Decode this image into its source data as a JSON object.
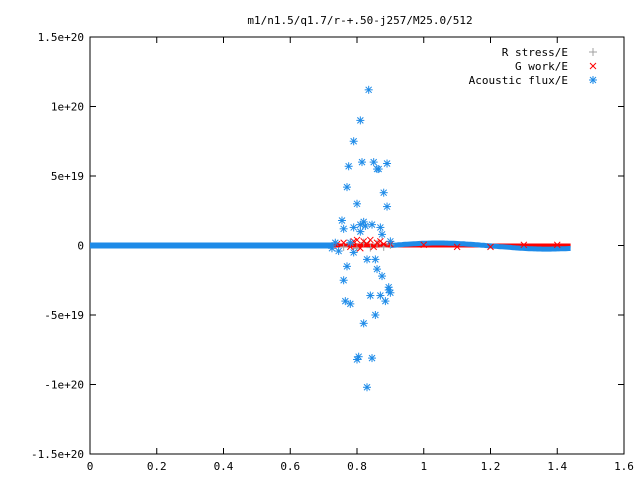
{
  "chart_data": {
    "type": "scatter",
    "title": "m1/n1.5/q1.7/r-+.50-j257/M25.0/512",
    "xlabel": "",
    "ylabel": "",
    "xlim": [
      0,
      1.6
    ],
    "ylim": [
      -1.5e+20,
      1.5e+20
    ],
    "x_ticks": [
      0,
      0.2,
      0.4,
      0.6,
      0.8,
      1,
      1.2,
      1.4,
      1.6
    ],
    "x_tick_labels": [
      "0",
      "0.2",
      "0.4",
      "0.6",
      "0.8",
      "1",
      "1.2",
      "1.4",
      "1.6"
    ],
    "y_ticks": [
      -1.5e+20,
      -1e+20,
      -5e+19,
      0,
      5e+19,
      1e+20,
      1.5e+20
    ],
    "y_tick_labels": [
      "-1.5e+20",
      "-1e+20",
      "-5e+19",
      "0",
      "5e+19",
      "1e+20",
      "1.5e+20"
    ],
    "grid": false,
    "legend_position": "top-right",
    "series": [
      {
        "name": "R stress/E",
        "marker": "plus",
        "color": "#a0a0a0",
        "x": [
          0.76,
          0.78,
          0.8,
          0.82,
          0.84,
          0.86,
          0.88,
          0.9
        ],
        "y": [
          -1e+18,
          1.5e+18,
          -2e+18,
          2e+18,
          -1.5e+18,
          1e+18,
          -1e+18,
          5e+17
        ]
      },
      {
        "name": "G work/E",
        "marker": "cross",
        "color": "#ff0000",
        "x": [
          0.74,
          0.76,
          0.78,
          0.79,
          0.8,
          0.81,
          0.82,
          0.83,
          0.84,
          0.85,
          0.86,
          0.87,
          0.88,
          0.9,
          1.0,
          1.1,
          1.2,
          1.3,
          1.4
        ],
        "y": [
          1e+18,
          2e+18,
          -1e+18,
          3e+18,
          4e+18,
          -2e+18,
          3e+18,
          1e+18,
          4e+18,
          -1e+18,
          2e+18,
          3e+18,
          1e+18,
          1e+18,
          5e+17,
          -1e+18,
          -1e+18,
          5e+17,
          5e+17
        ]
      },
      {
        "name": "Acoustic flux/E",
        "marker": "star",
        "color": "#1e8be8",
        "x": [
          0.725,
          0.735,
          0.745,
          0.755,
          0.76,
          0.765,
          0.77,
          0.775,
          0.78,
          0.79,
          0.79,
          0.8,
          0.8,
          0.805,
          0.81,
          0.81,
          0.815,
          0.82,
          0.82,
          0.825,
          0.83,
          0.835,
          0.84,
          0.845,
          0.85,
          0.855,
          0.86,
          0.86,
          0.865,
          0.87,
          0.87,
          0.875,
          0.88,
          0.885,
          0.89,
          0.89,
          0.895,
          0.9,
          0.9,
          0.76,
          0.77,
          0.78,
          0.79,
          0.81,
          0.83,
          0.845,
          0.855,
          0.875,
          0.895
        ],
        "y": [
          -2e+18,
          2e+18,
          -4e+18,
          1.8e+19,
          1.2e+19,
          -4e+19,
          4.2e+19,
          5.7e+19,
          -4.2e+19,
          1.3e+19,
          7.5e+19,
          -8.2e+19,
          3e+19,
          -8e+19,
          9e+19,
          1.5e+19,
          6e+19,
          -5.6e+19,
          1.7e+19,
          1.4e+19,
          -1.02e+20,
          1.12e+20,
          -3.6e+19,
          -8.1e+19,
          6e+19,
          -5e+19,
          5.5e+19,
          -1.7e+19,
          5.5e+19,
          -3.6e+19,
          1.3e+19,
          -2.2e+19,
          3.8e+19,
          -4e+19,
          5.9e+19,
          2.8e+19,
          -3.2e+19,
          -3.4e+19,
          3e+18,
          -2.5e+19,
          -1.5e+19,
          2e+18,
          -5e+18,
          1e+19,
          -1e+19,
          1.5e+19,
          -1e+19,
          8e+18,
          -3e+19
        ]
      }
    ]
  }
}
